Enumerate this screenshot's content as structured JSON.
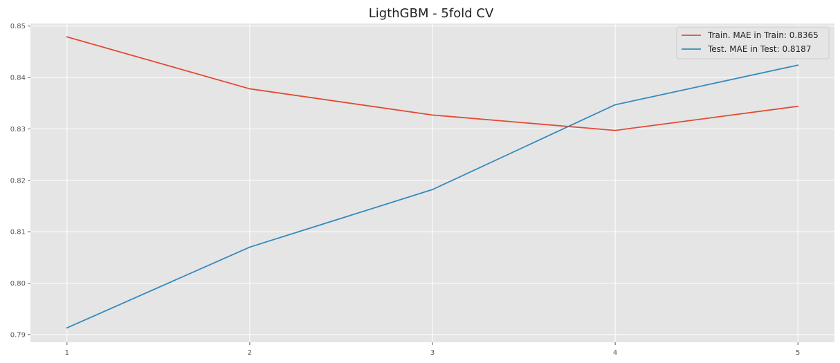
{
  "chart_data": {
    "type": "line",
    "title": "LigthGBM - 5fold CV",
    "xlabel": "",
    "ylabel": "",
    "x": [
      1,
      2,
      3,
      4,
      5
    ],
    "x_ticks": [
      "1",
      "2",
      "3",
      "4",
      "5"
    ],
    "y_ticks": [
      "0.79",
      "0.80",
      "0.81",
      "0.82",
      "0.83",
      "0.84",
      "0.85"
    ],
    "xlim": [
      0.8,
      5.2
    ],
    "ylim": [
      0.7885,
      0.8505
    ],
    "grid": true,
    "legend_position": "top-right",
    "series": [
      {
        "name": "Train. MAE in Train: 0.8365",
        "color": "#E24A33",
        "values": [
          0.8479,
          0.8378,
          0.8327,
          0.8297,
          0.8344
        ]
      },
      {
        "name": "Test.  MAE in Test:  0.8187",
        "color": "#348ABD",
        "values": [
          0.7913,
          0.807,
          0.8182,
          0.8347,
          0.8424
        ]
      }
    ],
    "colors": {
      "plot_background": "#E5E5E5",
      "grid": "#FFFFFF",
      "legend_background": "#E5E5E5",
      "legend_border": "#CCCCCC"
    }
  }
}
